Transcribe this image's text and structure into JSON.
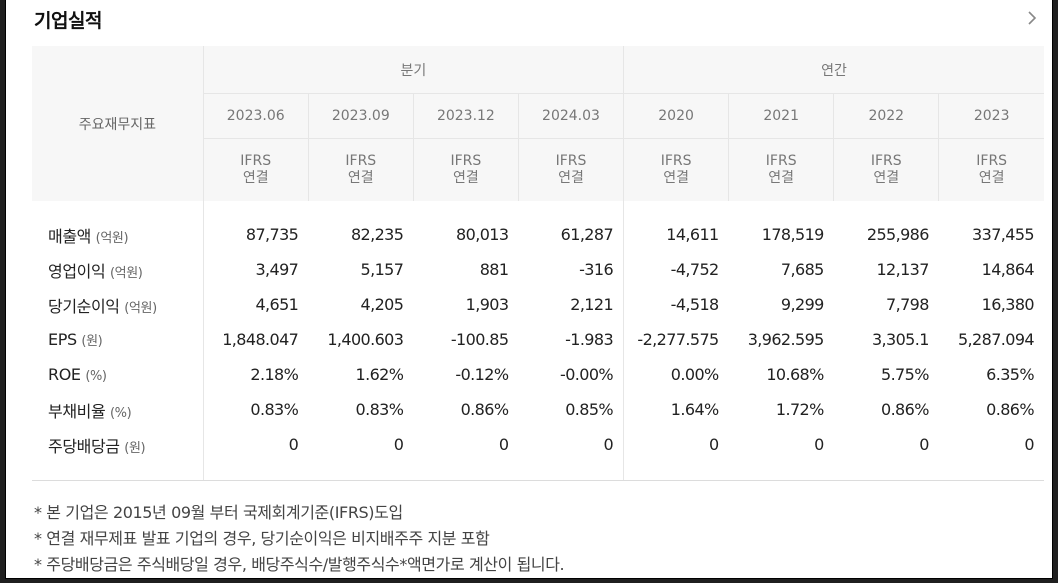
{
  "section_title": "기업실적",
  "icons": {
    "chevron": "chevron-right-icon"
  },
  "header": {
    "corner_label": "주요재무지표",
    "group_quarter": "분기",
    "group_annual": "연간",
    "periods": [
      "2023.06",
      "2023.09",
      "2023.12",
      "2024.03",
      "2020",
      "2021",
      "2022",
      "2023"
    ],
    "standard_line1": "IFRS",
    "standard_line2": "연결"
  },
  "rows": [
    {
      "label": "매출액",
      "unit": "(억원)",
      "values": [
        "87,735",
        "82,235",
        "80,013",
        "61,287",
        "14,611",
        "178,519",
        "255,986",
        "337,455"
      ]
    },
    {
      "label": "영업이익",
      "unit": "(억원)",
      "values": [
        "3,497",
        "5,157",
        "881",
        "-316",
        "-4,752",
        "7,685",
        "12,137",
        "14,864"
      ]
    },
    {
      "label": "당기순이익",
      "unit": "(억원)",
      "values": [
        "4,651",
        "4,205",
        "1,903",
        "2,121",
        "-4,518",
        "9,299",
        "7,798",
        "16,380"
      ]
    },
    {
      "label": "EPS",
      "unit": "(원)",
      "values": [
        "1,848.047",
        "1,400.603",
        "-100.85",
        "-1.983",
        "-2,277.575",
        "3,962.595",
        "3,305.1",
        "5,287.094"
      ]
    },
    {
      "label": "ROE",
      "unit": "(%)",
      "values": [
        "2.18%",
        "1.62%",
        "-0.12%",
        "-0.00%",
        "0.00%",
        "10.68%",
        "5.75%",
        "6.35%"
      ]
    },
    {
      "label": "부채비율",
      "unit": "(%)",
      "values": [
        "0.83%",
        "0.83%",
        "0.86%",
        "0.85%",
        "1.64%",
        "1.72%",
        "0.86%",
        "0.86%"
      ]
    },
    {
      "label": "주당배당금",
      "unit": "(원)",
      "values": [
        "0",
        "0",
        "0",
        "0",
        "0",
        "0",
        "0",
        "0"
      ]
    }
  ],
  "notes": [
    "* 본 기업은 2015년 09월 부터 국제회계기준(IFRS)도입",
    "* 연결 재무제표 발표 기업의 경우, 당기순이익은 비지배주주 지분 포함",
    "* 주당배당금은 주식배당일 경우, 배당주식수/발행주식수*액면가로 계산이 됩니다."
  ],
  "colors": {
    "header_bg": "#f7f7f7",
    "border": "#e6e6e6",
    "text": "#222222",
    "muted": "#777777"
  }
}
